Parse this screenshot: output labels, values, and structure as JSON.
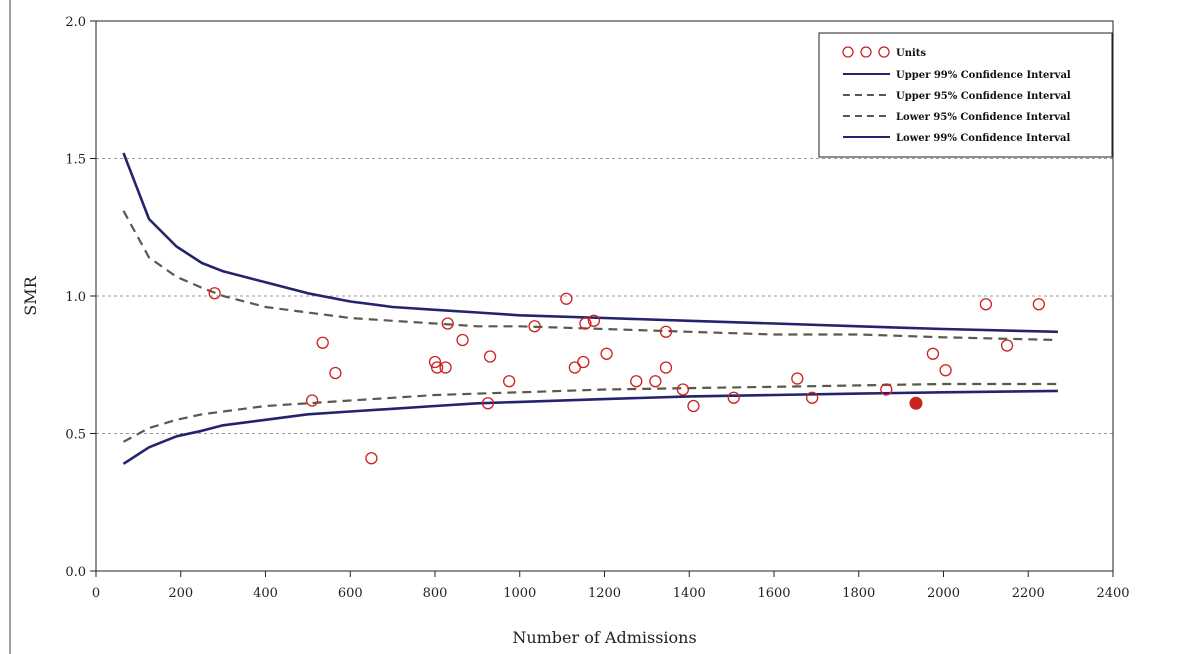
{
  "chart_data": {
    "type": "scatter",
    "title": "",
    "xlabel": "Number of Admissions",
    "ylabel": "SMR",
    "xlim": [
      0,
      2400
    ],
    "ylim": [
      0.0,
      2.0
    ],
    "x_ticks": [
      0,
      200,
      400,
      600,
      800,
      1000,
      1200,
      1400,
      1600,
      1800,
      2000,
      2200,
      2400
    ],
    "y_ticks": [
      "0.0",
      "0.5",
      "1.0",
      "1.5",
      "2.0"
    ],
    "grid": "horizontal dashed at 0.5, 1.0, 1.5",
    "legend_placement": "top-right",
    "legend": [
      {
        "label": "Units",
        "style": "circle"
      },
      {
        "label": "Upper 99% Confidence Interval",
        "style": "solid"
      },
      {
        "label": "Upper 95% Confidence Interval",
        "style": "dashed"
      },
      {
        "label": "Lower 95% Confidence Interval",
        "style": "dashed"
      },
      {
        "label": "Lower 99% Confidence Interval",
        "style": "solid"
      }
    ],
    "colors": {
      "units": "#cc2222",
      "ci99": "#24246e",
      "ci95": "#5a5a4a",
      "grid": "#9a9a9a"
    },
    "series": [
      {
        "name": "Units",
        "type": "scatter",
        "points": [
          [
            280,
            1.01
          ],
          [
            510,
            0.62
          ],
          [
            535,
            0.83
          ],
          [
            565,
            0.72
          ],
          [
            650,
            0.41
          ],
          [
            800,
            0.76
          ],
          [
            805,
            0.74
          ],
          [
            825,
            0.74
          ],
          [
            830,
            0.9
          ],
          [
            865,
            0.84
          ],
          [
            925,
            0.61
          ],
          [
            930,
            0.78
          ],
          [
            975,
            0.69
          ],
          [
            1035,
            0.89
          ],
          [
            1110,
            0.99
          ],
          [
            1130,
            0.74
          ],
          [
            1150,
            0.76
          ],
          [
            1155,
            0.9
          ],
          [
            1175,
            0.91
          ],
          [
            1205,
            0.79
          ],
          [
            1275,
            0.69
          ],
          [
            1320,
            0.69
          ],
          [
            1345,
            0.74
          ],
          [
            1345,
            0.87
          ],
          [
            1385,
            0.66
          ],
          [
            1410,
            0.6
          ],
          [
            1505,
            0.63
          ],
          [
            1655,
            0.7
          ],
          [
            1690,
            0.63
          ],
          [
            1865,
            0.66
          ],
          [
            1975,
            0.79
          ],
          [
            2005,
            0.73
          ],
          [
            2100,
            0.97
          ],
          [
            2150,
            0.82
          ],
          [
            2225,
            0.97
          ]
        ]
      },
      {
        "name": "Highlighted Unit",
        "type": "scatter-filled",
        "points": [
          [
            1935,
            0.61
          ]
        ]
      },
      {
        "name": "Upper 99% Confidence Interval",
        "type": "line",
        "points": [
          [
            65,
            1.52
          ],
          [
            125,
            1.28
          ],
          [
            190,
            1.18
          ],
          [
            250,
            1.12
          ],
          [
            300,
            1.09
          ],
          [
            400,
            1.05
          ],
          [
            500,
            1.01
          ],
          [
            600,
            0.98
          ],
          [
            700,
            0.96
          ],
          [
            800,
            0.95
          ],
          [
            900,
            0.94
          ],
          [
            1000,
            0.93
          ],
          [
            1200,
            0.92
          ],
          [
            1400,
            0.91
          ],
          [
            1600,
            0.9
          ],
          [
            1800,
            0.89
          ],
          [
            2000,
            0.88
          ],
          [
            2270,
            0.87
          ]
        ]
      },
      {
        "name": "Upper 95% Confidence Interval",
        "type": "line-dashed",
        "points": [
          [
            65,
            1.31
          ],
          [
            125,
            1.14
          ],
          [
            190,
            1.07
          ],
          [
            250,
            1.03
          ],
          [
            300,
            1.0
          ],
          [
            400,
            0.96
          ],
          [
            500,
            0.94
          ],
          [
            600,
            0.92
          ],
          [
            700,
            0.91
          ],
          [
            800,
            0.9
          ],
          [
            900,
            0.89
          ],
          [
            1000,
            0.89
          ],
          [
            1200,
            0.88
          ],
          [
            1400,
            0.87
          ],
          [
            1600,
            0.86
          ],
          [
            1800,
            0.86
          ],
          [
            2000,
            0.85
          ],
          [
            2270,
            0.84
          ]
        ]
      },
      {
        "name": "Lower 95% Confidence Interval",
        "type": "line-dashed",
        "points": [
          [
            65,
            0.47
          ],
          [
            125,
            0.52
          ],
          [
            190,
            0.55
          ],
          [
            250,
            0.57
          ],
          [
            300,
            0.58
          ],
          [
            400,
            0.6
          ],
          [
            500,
            0.61
          ],
          [
            600,
            0.62
          ],
          [
            700,
            0.63
          ],
          [
            800,
            0.64
          ],
          [
            900,
            0.645
          ],
          [
            1000,
            0.65
          ],
          [
            1200,
            0.66
          ],
          [
            1400,
            0.665
          ],
          [
            1600,
            0.67
          ],
          [
            1800,
            0.675
          ],
          [
            2000,
            0.68
          ],
          [
            2270,
            0.68
          ]
        ]
      },
      {
        "name": "Lower 99% Confidence Interval",
        "type": "line",
        "points": [
          [
            65,
            0.39
          ],
          [
            125,
            0.45
          ],
          [
            190,
            0.49
          ],
          [
            250,
            0.51
          ],
          [
            300,
            0.53
          ],
          [
            400,
            0.55
          ],
          [
            500,
            0.57
          ],
          [
            600,
            0.58
          ],
          [
            700,
            0.59
          ],
          [
            800,
            0.6
          ],
          [
            900,
            0.61
          ],
          [
            1000,
            0.615
          ],
          [
            1200,
            0.625
          ],
          [
            1400,
            0.635
          ],
          [
            1600,
            0.64
          ],
          [
            1800,
            0.645
          ],
          [
            2000,
            0.65
          ],
          [
            2270,
            0.655
          ]
        ]
      }
    ]
  }
}
